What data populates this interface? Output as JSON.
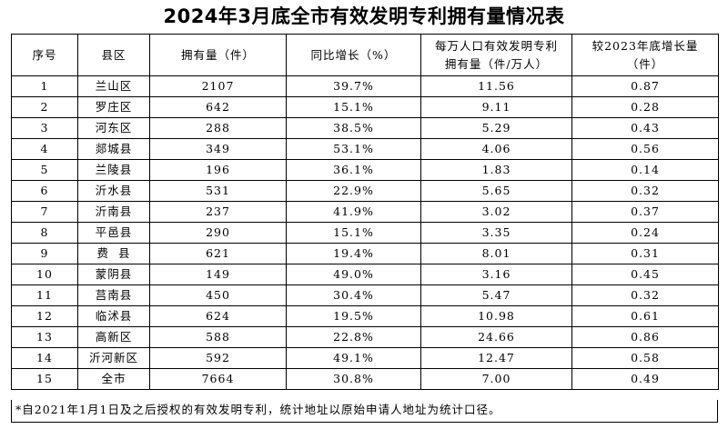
{
  "title": "2024年3月底全市有效发明专利拥有量情况表",
  "headers": {
    "seq": "序号",
    "district": "县区",
    "count": "拥有量（件）",
    "growth": "同比增长（%）",
    "per_10k_line1": "每万人口有效发明专利",
    "per_10k_line2": "拥有量（件/万人）",
    "increase_line1": "较2023年底增长量",
    "increase_line2": "（件）"
  },
  "rows": [
    {
      "seq": "1",
      "district": "兰山区",
      "count": "2107",
      "growth": "39.7%",
      "per_10k": "11.56",
      "increase": "0.87"
    },
    {
      "seq": "2",
      "district": "罗庄区",
      "count": "642",
      "growth": "15.1%",
      "per_10k": "9.11",
      "increase": "0.28"
    },
    {
      "seq": "3",
      "district": "河东区",
      "count": "288",
      "growth": "38.5%",
      "per_10k": "5.29",
      "increase": "0.43"
    },
    {
      "seq": "4",
      "district": "郯城县",
      "count": "349",
      "growth": "53.1%",
      "per_10k": "4.06",
      "increase": "0.56"
    },
    {
      "seq": "5",
      "district": "兰陵县",
      "count": "196",
      "growth": "36.1%",
      "per_10k": "1.83",
      "increase": "0.14"
    },
    {
      "seq": "6",
      "district": "沂水县",
      "count": "531",
      "growth": "22.9%",
      "per_10k": "5.65",
      "increase": "0.32"
    },
    {
      "seq": "7",
      "district": "沂南县",
      "count": "237",
      "growth": "41.9%",
      "per_10k": "3.02",
      "increase": "0.37"
    },
    {
      "seq": "8",
      "district": "平邑县",
      "count": "290",
      "growth": "15.1%",
      "per_10k": "3.35",
      "increase": "0.24"
    },
    {
      "seq": "9",
      "district": "费  县",
      "count": "621",
      "growth": "19.4%",
      "per_10k": "8.01",
      "increase": "0.31"
    },
    {
      "seq": "10",
      "district": "蒙阴县",
      "count": "149",
      "growth": "49.0%",
      "per_10k": "3.16",
      "increase": "0.45"
    },
    {
      "seq": "11",
      "district": "莒南县",
      "count": "450",
      "growth": "30.4%",
      "per_10k": "5.47",
      "increase": "0.32"
    },
    {
      "seq": "12",
      "district": "临沭县",
      "count": "624",
      "growth": "19.5%",
      "per_10k": "10.98",
      "increase": "0.61"
    },
    {
      "seq": "13",
      "district": "高新区",
      "count": "588",
      "growth": "22.8%",
      "per_10k": "24.66",
      "increase": "0.86"
    },
    {
      "seq": "14",
      "district": "沂河新区",
      "count": "592",
      "growth": "49.1%",
      "per_10k": "12.47",
      "increase": "0.58"
    },
    {
      "seq": "15",
      "district": "全市",
      "count": "7664",
      "growth": "30.8%",
      "per_10k": "7.00",
      "increase": "0.49"
    }
  ],
  "footnote": "*自2021年1月1日及之后授权的有效发明专利，统计地址以原始申请人地址为统计口径。"
}
